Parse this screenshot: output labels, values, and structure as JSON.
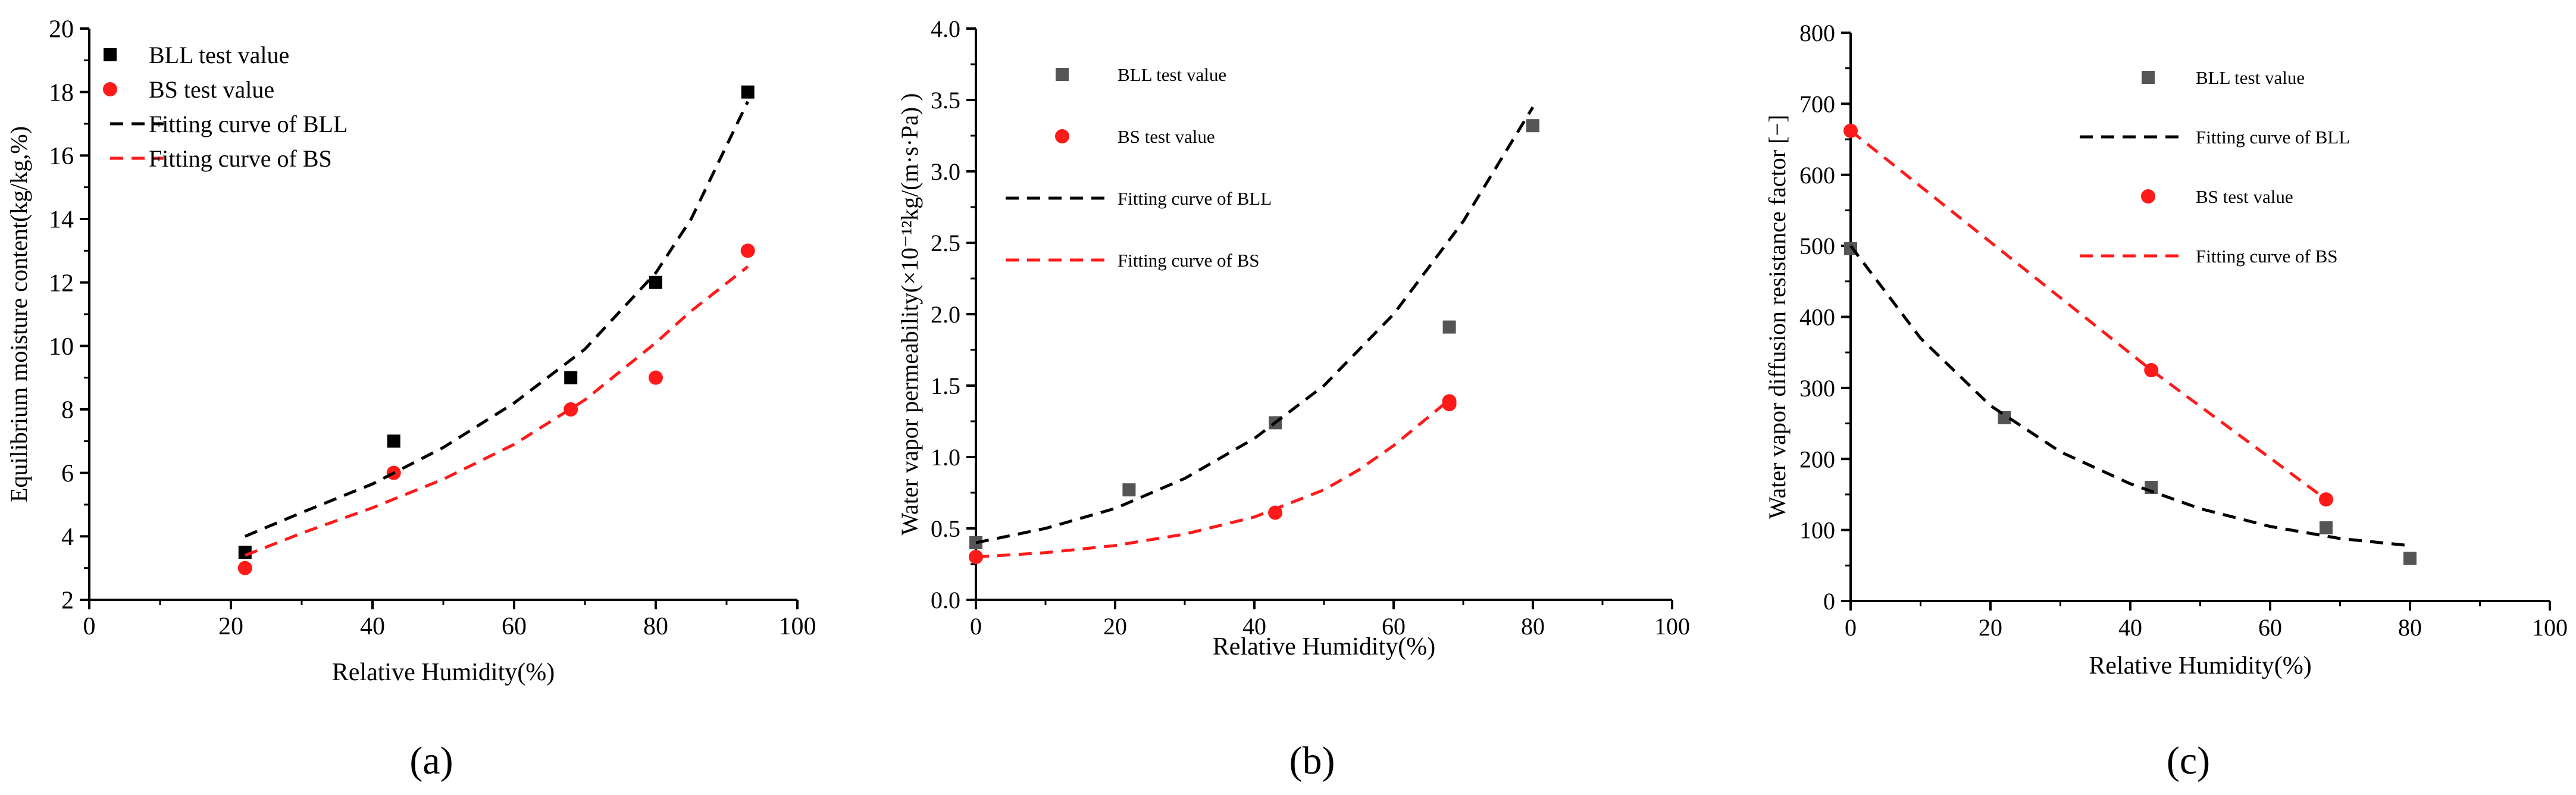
{
  "chart_data": [
    {
      "type": "scatter",
      "panel_label": "(a)",
      "xlabel": "Relative Humidity(%)",
      "ylabel": "Equilibrium moisture content(kg/kg,%)",
      "xlim": [
        0,
        100
      ],
      "ylim": [
        2,
        20
      ],
      "xticks": [
        0,
        20,
        40,
        60,
        80,
        100
      ],
      "yticks": [
        2,
        4,
        6,
        8,
        10,
        12,
        14,
        16,
        18,
        20
      ],
      "legend_position": "top-left",
      "series": [
        {
          "name": "BLL test value",
          "kind": "points",
          "marker": "square",
          "color": "#000000",
          "x": [
            22,
            43,
            68,
            80,
            93
          ],
          "y": [
            3.5,
            7,
            9,
            12,
            18
          ]
        },
        {
          "name": "BS test value",
          "kind": "points",
          "marker": "circle",
          "color": "#ff1a1a",
          "x": [
            22,
            43,
            68,
            80,
            93
          ],
          "y": [
            3,
            6,
            8,
            9,
            13
          ]
        },
        {
          "name": "Fitting curve of BLL",
          "kind": "fit",
          "color": "#000000",
          "x": [
            22,
            30,
            40,
            50,
            60,
            70,
            80,
            85,
            93
          ],
          "y": [
            4.0,
            4.75,
            5.65,
            6.8,
            8.2,
            9.9,
            12.3,
            14.0,
            17.7
          ]
        },
        {
          "name": "Fitting curve of BS",
          "kind": "fit",
          "color": "#ff1a1a",
          "x": [
            22,
            30,
            40,
            50,
            60,
            70,
            80,
            85,
            93
          ],
          "y": [
            3.4,
            4.1,
            4.9,
            5.8,
            6.9,
            8.3,
            10.1,
            11.1,
            12.5
          ]
        }
      ]
    },
    {
      "type": "scatter",
      "panel_label": "(b)",
      "xlabel": "Relative Humidity(%)",
      "ylabel": "Water vapor permeability(×10⁻¹²kg/(m·s·Pa) )",
      "xlim": [
        0,
        100
      ],
      "ylim": [
        0,
        4
      ],
      "xticks": [
        0,
        20,
        40,
        60,
        80,
        100
      ],
      "yticks": [
        0.0,
        0.5,
        1.0,
        1.5,
        2.0,
        2.5,
        3.0,
        3.5,
        4.0
      ],
      "tick_decimals": 1,
      "legend_position": "top-left",
      "series": [
        {
          "name": "BLL test value",
          "kind": "points",
          "marker": "square",
          "color": "#555555",
          "x": [
            0,
            22,
            43,
            68,
            80
          ],
          "y": [
            0.4,
            0.77,
            1.24,
            1.91,
            3.32
          ]
        },
        {
          "name": "BS test value",
          "kind": "points",
          "marker": "circle",
          "color": "#ff1a1a",
          "x": [
            0,
            43,
            68,
            68
          ],
          "y": [
            0.3,
            0.61,
            1.37,
            1.39
          ]
        },
        {
          "name": "Fitting curve of BLL",
          "kind": "fit",
          "color": "#000000",
          "x": [
            0,
            10,
            20,
            30,
            40,
            50,
            60,
            70,
            80
          ],
          "y": [
            0.4,
            0.5,
            0.64,
            0.85,
            1.13,
            1.5,
            2.0,
            2.65,
            3.45
          ]
        },
        {
          "name": "Fitting curve of BS",
          "kind": "fit",
          "color": "#ff1a1a",
          "x": [
            0,
            10,
            20,
            30,
            40,
            50,
            55,
            60,
            68
          ],
          "y": [
            0.3,
            0.33,
            0.38,
            0.46,
            0.58,
            0.77,
            0.91,
            1.08,
            1.4
          ]
        }
      ]
    },
    {
      "type": "scatter",
      "panel_label": "(c)",
      "xlabel": "Relative Humidity(%)",
      "ylabel": "Water vapor diffusion resistance factor [−]",
      "xlim": [
        0,
        100
      ],
      "ylim": [
        0,
        800
      ],
      "xticks": [
        0,
        20,
        40,
        60,
        80,
        100
      ],
      "yticks": [
        0,
        100,
        200,
        300,
        400,
        500,
        600,
        700,
        800
      ],
      "legend_position": "top-center",
      "series": [
        {
          "name": "BLL test value",
          "kind": "points",
          "marker": "square",
          "color": "#555555",
          "x": [
            0,
            22,
            43,
            68,
            80
          ],
          "y": [
            496,
            258,
            160,
            103,
            60
          ]
        },
        {
          "name": "Fitting curve of BLL",
          "kind": "fit",
          "color": "#000000",
          "x": [
            0,
            10,
            20,
            30,
            40,
            50,
            60,
            70,
            80
          ],
          "y": [
            500,
            370,
            275,
            210,
            165,
            130,
            105,
            88,
            78
          ]
        },
        {
          "name": "BS test value",
          "kind": "points",
          "marker": "circle",
          "color": "#ff1a1a",
          "x": [
            0,
            43,
            68
          ],
          "y": [
            662,
            325,
            143
          ]
        },
        {
          "name": "Fitting curve of BS",
          "kind": "fit",
          "color": "#ff1a1a",
          "x": [
            0,
            43,
            68
          ],
          "y": [
            662,
            325,
            143
          ]
        }
      ]
    }
  ]
}
